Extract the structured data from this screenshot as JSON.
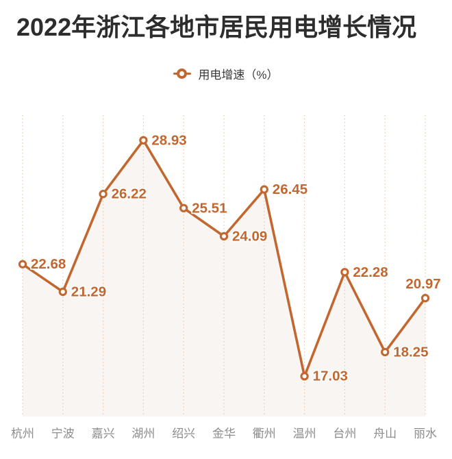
{
  "header": {
    "title": "2022年浙江各地市居民用电增长情况"
  },
  "legend": {
    "label": "用电增速（%）"
  },
  "colors": {
    "line": "#C2672F",
    "marker_fill": "#FFFFFF",
    "grid": "#E9C7A8",
    "area": "#F8F5F2",
    "value_label": "#C2672F",
    "axis_label": "#8C8C8C",
    "title_text": "#2D2D2D",
    "legend_text": "#3A3A3A"
  },
  "chart_data": {
    "type": "line",
    "title": "2022年浙江各地市居民用电增长情况",
    "legend_entries": [
      "用电增速（%）"
    ],
    "categories": [
      "杭州",
      "宁波",
      "嘉兴",
      "湖州",
      "绍兴",
      "金华",
      "衢州",
      "温州",
      "台州",
      "舟山",
      "丽水"
    ],
    "series": [
      {
        "name": "用电增速（%）",
        "values": [
          22.68,
          21.29,
          26.22,
          28.93,
          25.51,
          24.09,
          26.45,
          17.03,
          22.28,
          18.25,
          20.97
        ]
      }
    ],
    "xlabel": "",
    "ylabel": "",
    "ylim": [
      15.0,
      30.2
    ],
    "grid": "vertical-dotted-only",
    "legend_position": "top-center",
    "value_labels": "shown-beside-points",
    "area_fill": true,
    "y_axis_shown": false
  }
}
